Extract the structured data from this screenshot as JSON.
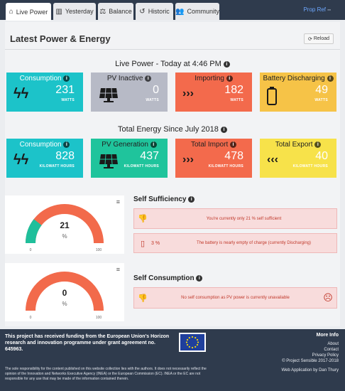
{
  "nav": {
    "tabs": [
      {
        "label": "Live Power",
        "icon": "home-icon"
      },
      {
        "label": "Yesterday",
        "icon": "bar-chart-icon"
      },
      {
        "label": "Balance",
        "icon": "scale-icon"
      },
      {
        "label": "Historic",
        "icon": "history-icon"
      },
      {
        "label": "Community",
        "icon": "users-icon"
      }
    ],
    "prop_ref": "Prop Ref"
  },
  "page": {
    "title": "Latest Power & Energy",
    "reload_label": "Reload"
  },
  "live": {
    "title": "Live Power - Today at 4:46 PM",
    "cards": [
      {
        "label": "Consumption",
        "value": "231",
        "unit": "WATTS",
        "icon": "lightning-icon",
        "color": "#1cc3c9"
      },
      {
        "label": "PV Inactive",
        "value": "0",
        "unit": "WATTS",
        "icon": "solar-panel-icon",
        "color": "#b7bac6"
      },
      {
        "label": "Importing",
        "value": "182",
        "unit": "WATTS",
        "icon": "triple-chevron-right-icon",
        "color": "#f36a4c"
      },
      {
        "label": "Battery Discharging",
        "value": "49",
        "unit": "WATTS",
        "icon": "battery-icon",
        "color": "#f6c347"
      }
    ]
  },
  "total": {
    "title": "Total Energy Since July 2018",
    "cards": [
      {
        "label": "Consumption",
        "value": "828",
        "unit": "KILOWATT HOURS",
        "icon": "lightning-icon",
        "color": "#1cc3c9"
      },
      {
        "label": "PV Generation",
        "value": "437",
        "unit": "KILOWATT HOURS",
        "icon": "solar-panel-icon",
        "color": "#1fc49c"
      },
      {
        "label": "Total Import",
        "value": "478",
        "unit": "KILOWATT HOURS",
        "icon": "triple-chevron-right-icon",
        "color": "#f36a4c"
      },
      {
        "label": "Total Export",
        "value": "40",
        "unit": "KILOWATT HOURS",
        "icon": "triple-chevron-left-icon",
        "color": "#f7e24a"
      }
    ]
  },
  "self_sufficiency": {
    "title": "Self Sufficiency",
    "gauge_value": "21",
    "gauge_unit": "%",
    "gauge_min": "0",
    "gauge_max": "100",
    "fraction": 0.21,
    "alert1": "You're currently only 21 % self sufficient",
    "battery_pct": "3 %",
    "alert2": "The battery is nearly empty of charge (currently Discharging)"
  },
  "self_consumption": {
    "title": "Self Consumption",
    "gauge_value": "0",
    "gauge_unit": "%",
    "gauge_min": "0",
    "gauge_max": "100",
    "fraction": 0.0,
    "alert": "No self consumption as PV power is currently unavailable"
  },
  "colors": {
    "gauge_fill": "#1fbf9b",
    "gauge_track": "#f26a4b"
  },
  "footer": {
    "funding": "This project has received funding from the European Union's Horizon research and innovation programme under grant agreement no. 645963.",
    "disclaimer": "The sole responsibility for the content published on this website collection lies with the authors. It does not necessarily reflect the opinion of the Innovation and Networks Executive Agency (INEA) or the European Commission (EC). INEA or the EC are not responsible for any use that may be made of the information contained therein.",
    "more_info": "More Info",
    "links": [
      "About",
      "Contact",
      "Privacy Policy",
      "© Project Sensible 2017-2018"
    ],
    "credit": "Web Application by Dan Thury"
  }
}
